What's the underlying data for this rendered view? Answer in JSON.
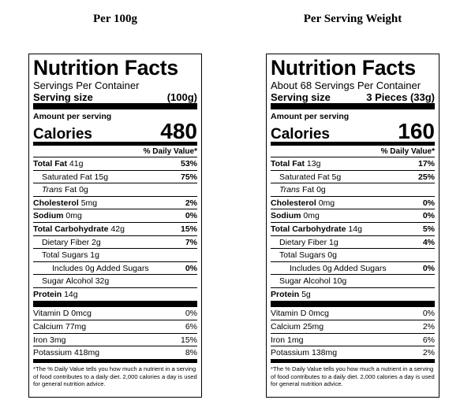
{
  "labels": [
    {
      "heading": "Per 100g",
      "title": "Nutrition Facts",
      "servings": "Servings Per Container",
      "serving_size_label": "Serving size",
      "serving_size": "(100g)",
      "amount_per_serving": "Amount per serving",
      "calories_label": "Calories",
      "calories": "480",
      "dv_header": "% Daily Value*",
      "nutrients": [
        {
          "name": "Total Fat",
          "amount": "41g",
          "dv": "53%"
        },
        {
          "name": "Saturated Fat",
          "amount": "15g",
          "dv": "75%"
        },
        {
          "prefix": "Trans",
          "name": "Fat",
          "amount": "0g"
        },
        {
          "name": "Cholesterol",
          "amount": "5mg",
          "dv": "2%"
        },
        {
          "name": "Sodium",
          "amount": "0mg",
          "dv": "0%"
        },
        {
          "name": "Total Carbohydrate",
          "amount": "42g",
          "dv": "15%"
        },
        {
          "name": "Dietary Fiber",
          "amount": "2g",
          "dv": "7%"
        },
        {
          "name": "Total Sugars",
          "amount": "1g"
        },
        {
          "name": "Includes 0g Added Sugars",
          "dv": "0%"
        },
        {
          "name": "Sugar Alcohol",
          "amount": "32g"
        },
        {
          "name": "Protein",
          "amount": "14g"
        }
      ],
      "vitamins": [
        {
          "name": "Vitamin D",
          "amount": "0mcg",
          "dv": "0%"
        },
        {
          "name": "Calcium",
          "amount": "77mg",
          "dv": "6%"
        },
        {
          "name": "Iron",
          "amount": "3mg",
          "dv": "15%"
        },
        {
          "name": "Potassium",
          "amount": "418mg",
          "dv": "8%"
        }
      ],
      "footnote": "*The % Daily Value tells you how much a nutrient in a serving of food contributes to a daily diet. 2,000 calories a day is used for general nutrition advice."
    },
    {
      "heading": "Per Serving Weight",
      "title": "Nutrition Facts",
      "servings": "About 68 Servings Per Container",
      "serving_size_label": "Serving size",
      "serving_size": "3 Pieces (33g)",
      "amount_per_serving": "Amount per serving",
      "calories_label": "Calories",
      "calories": "160",
      "dv_header": "% Daily Value*",
      "nutrients": [
        {
          "name": "Total Fat",
          "amount": "13g",
          "dv": "17%"
        },
        {
          "name": "Saturated Fat",
          "amount": "5g",
          "dv": "25%"
        },
        {
          "prefix": "Trans",
          "name": "Fat",
          "amount": "0g"
        },
        {
          "name": "Cholesterol",
          "amount": "0mg",
          "dv": "0%"
        },
        {
          "name": "Sodium",
          "amount": "0mg",
          "dv": "0%"
        },
        {
          "name": "Total Carbohydrate",
          "amount": "14g",
          "dv": "5%"
        },
        {
          "name": "Dietary Fiber",
          "amount": "1g",
          "dv": "4%"
        },
        {
          "name": "Total Sugars",
          "amount": "0g"
        },
        {
          "name": "Includes 0g Added Sugars",
          "dv": "0%"
        },
        {
          "name": "Sugar Alcohol",
          "amount": "10g"
        },
        {
          "name": "Protein",
          "amount": "5g"
        }
      ],
      "vitamins": [
        {
          "name": "Vitamin D",
          "amount": "0mcg",
          "dv": "0%"
        },
        {
          "name": "Calcium",
          "amount": "25mg",
          "dv": "2%"
        },
        {
          "name": "Iron",
          "amount": "1mg",
          "dv": "6%"
        },
        {
          "name": "Potassium",
          "amount": "138mg",
          "dv": "2%"
        }
      ],
      "footnote": "*The % Daily Value tells you how much a nutrient in a serving of food contributes to a daily diet. 2,000 calories a day is used for general nutrition advice."
    }
  ]
}
